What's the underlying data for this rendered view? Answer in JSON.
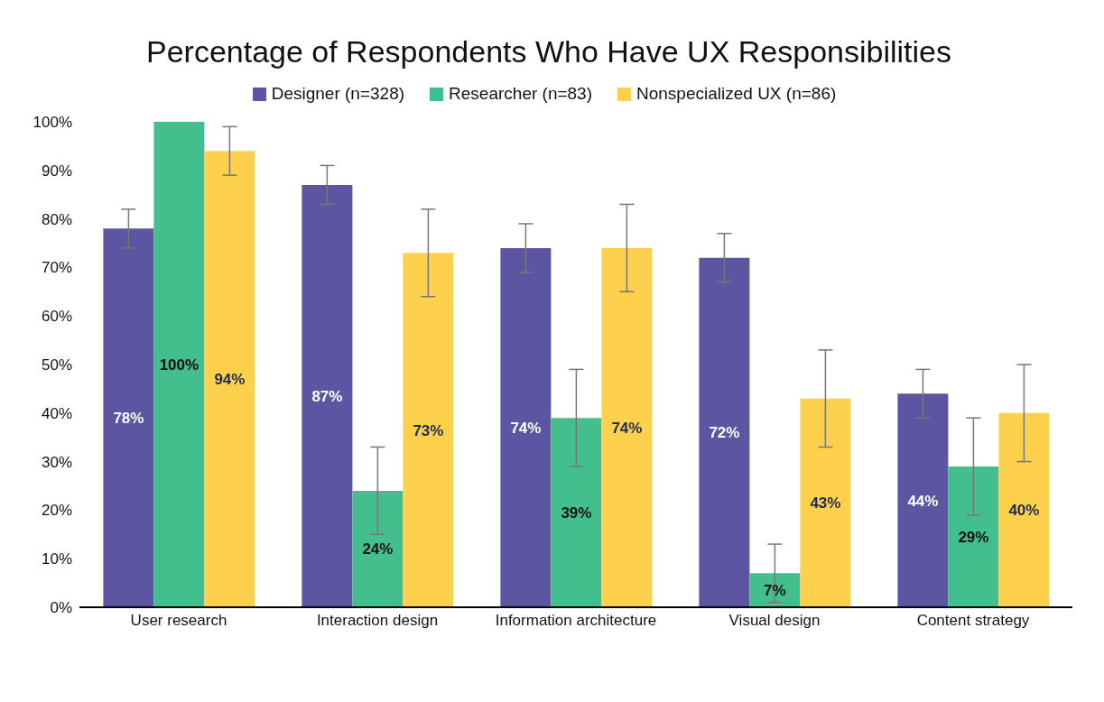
{
  "chart_data": {
    "type": "bar",
    "title": "Percentage of Respondents Who Have UX Responsibilities",
    "categories": [
      "User research",
      "Interaction design",
      "Information architecture",
      "Visual design",
      "Content strategy"
    ],
    "series": [
      {
        "name": "Designer (n=328)",
        "color": "#5b55a2",
        "values": [
          78,
          87,
          74,
          72,
          44
        ],
        "errors": [
          4,
          4,
          5,
          5,
          5
        ],
        "value_labels": [
          "78%",
          "87%",
          "74%",
          "72%",
          "44%"
        ]
      },
      {
        "name": "Researcher (n=83)",
        "color": "#43bf8e",
        "values": [
          100,
          24,
          39,
          7,
          29
        ],
        "errors": [
          null,
          9,
          10,
          6,
          10
        ],
        "value_labels": [
          "100%",
          "24%",
          "39%",
          "7%",
          "29%"
        ]
      },
      {
        "name": "Nonspecialized UX (n=86)",
        "color": "#fdd14c",
        "values": [
          94,
          73,
          74,
          43,
          40
        ],
        "errors": [
          5,
          9,
          9,
          10,
          10
        ],
        "value_labels": [
          "94%",
          "73%",
          "74%",
          "43%",
          "40%"
        ]
      }
    ],
    "ylim": [
      0,
      100
    ],
    "yticks": [
      {
        "value": 0,
        "label": "0%"
      },
      {
        "value": 10,
        "label": "10%"
      },
      {
        "value": 20,
        "label": "20%"
      },
      {
        "value": 30,
        "label": "30%"
      },
      {
        "value": 40,
        "label": "40%"
      },
      {
        "value": 50,
        "label": "50%"
      },
      {
        "value": 60,
        "label": "60%"
      },
      {
        "value": 70,
        "label": "70%"
      },
      {
        "value": 80,
        "label": "80%"
      },
      {
        "value": 90,
        "label": "90%"
      },
      {
        "value": 100,
        "label": "100%"
      }
    ],
    "grid": false,
    "legend": "top"
  }
}
